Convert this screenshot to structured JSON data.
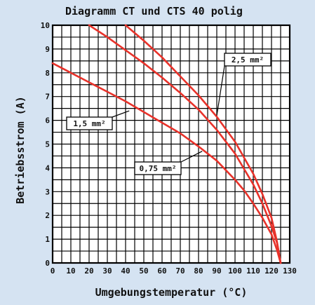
{
  "chart_data": {
    "type": "line",
    "title": "Diagramm CT und CTS 40 polig",
    "xlabel": "Umgebungstemperatur (°C)",
    "ylabel": "Betriebsstrom (A)",
    "xlim": [
      0,
      130
    ],
    "ylim": [
      0,
      10
    ],
    "x_ticks": [
      0,
      10,
      20,
      30,
      40,
      50,
      60,
      70,
      80,
      90,
      100,
      110,
      120,
      130
    ],
    "y_ticks": [
      0,
      1,
      2,
      3,
      4,
      5,
      6,
      7,
      8,
      9,
      10
    ],
    "grid": true,
    "colors": {
      "background": "#d5e3f2",
      "plot": "#ffffff",
      "grid": "#000000",
      "series": "#e8322a"
    },
    "series": [
      {
        "name": "0,75 mm²",
        "x": [
          0,
          10,
          20,
          30,
          40,
          50,
          60,
          70,
          80,
          90,
          100,
          105,
          110,
          115,
          120,
          123,
          125
        ],
        "y": [
          8.4,
          8.0,
          7.6,
          7.2,
          6.8,
          6.35,
          5.9,
          5.45,
          4.9,
          4.3,
          3.5,
          3.05,
          2.5,
          1.9,
          1.2,
          0.55,
          0
        ]
      },
      {
        "name": "1,5 mm²",
        "x": [
          20,
          30,
          40,
          50,
          60,
          70,
          80,
          90,
          100,
          110,
          115,
          120,
          123,
          125
        ],
        "y": [
          10.0,
          9.5,
          8.95,
          8.4,
          7.8,
          7.15,
          6.45,
          5.6,
          4.6,
          3.3,
          2.5,
          1.55,
          0.85,
          0
        ]
      },
      {
        "name": "2,5 mm²",
        "x": [
          40,
          50,
          60,
          70,
          80,
          90,
          100,
          110,
          115,
          120,
          123,
          125
        ],
        "y": [
          10.0,
          9.35,
          8.65,
          7.85,
          7.05,
          6.15,
          5.1,
          3.75,
          2.9,
          1.9,
          0.9,
          0
        ]
      }
    ],
    "annotations": [
      {
        "text": "2,5 mm²",
        "point": [
          90,
          6.2
        ]
      },
      {
        "text": "1,5 mm²",
        "point": [
          42,
          6.4
        ]
      },
      {
        "text": "0,75 mm²",
        "point": [
          82,
          4.7
        ]
      }
    ]
  }
}
